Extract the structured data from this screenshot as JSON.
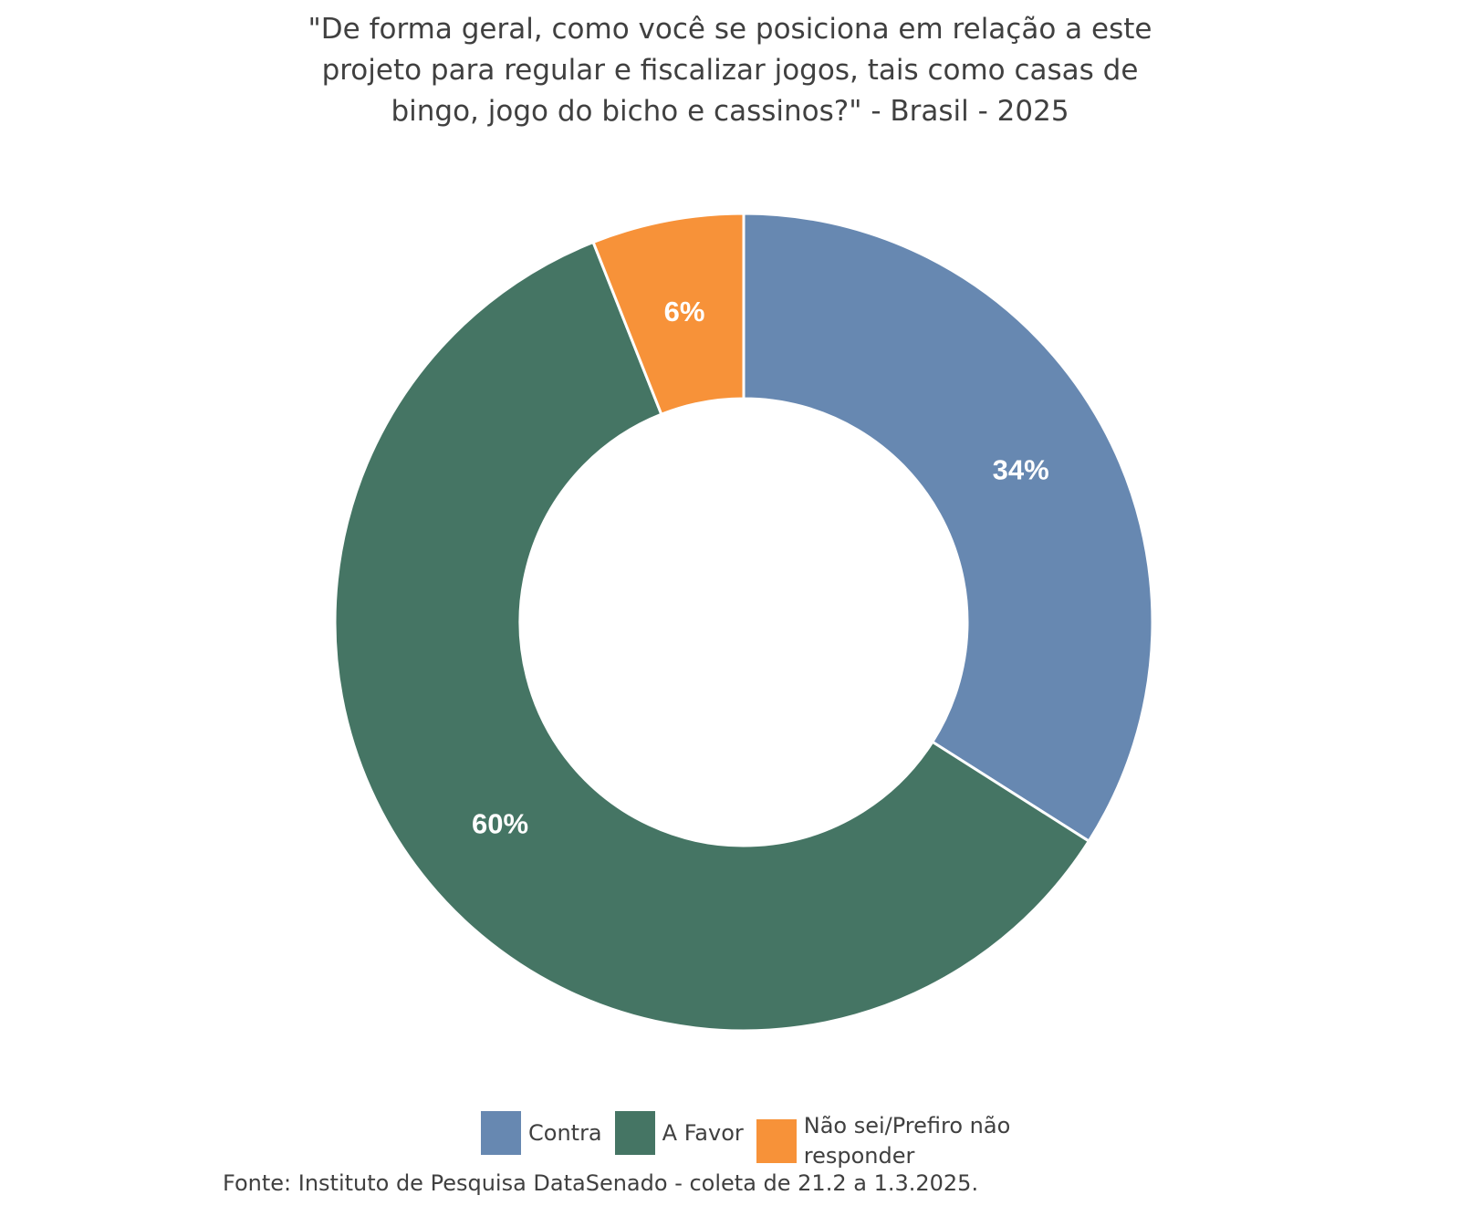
{
  "chart_data": {
    "type": "pie",
    "variant": "donut",
    "title_lines": [
      "\"De forma geral, como você se posiciona em relação a este",
      "projeto para regular e fiscalizar jogos, tais como casas de",
      "bingo, jogo do bicho e cassinos?\" - Brasil - 2025"
    ],
    "slices": [
      {
        "name": "Contra",
        "value": 34,
        "label": "34%",
        "color": "#6788b1"
      },
      {
        "name": "A Favor",
        "value": 60,
        "label": "60%",
        "color": "#457564"
      },
      {
        "name": "Não sei/Prefiro não responder",
        "value": 6,
        "label": "6%",
        "color": "#f79239"
      }
    ],
    "legend_position": "bottom",
    "source": "Fonte: Instituto de Pesquisa DataSenado - coleta de 21.2 a 1.3.2025."
  }
}
